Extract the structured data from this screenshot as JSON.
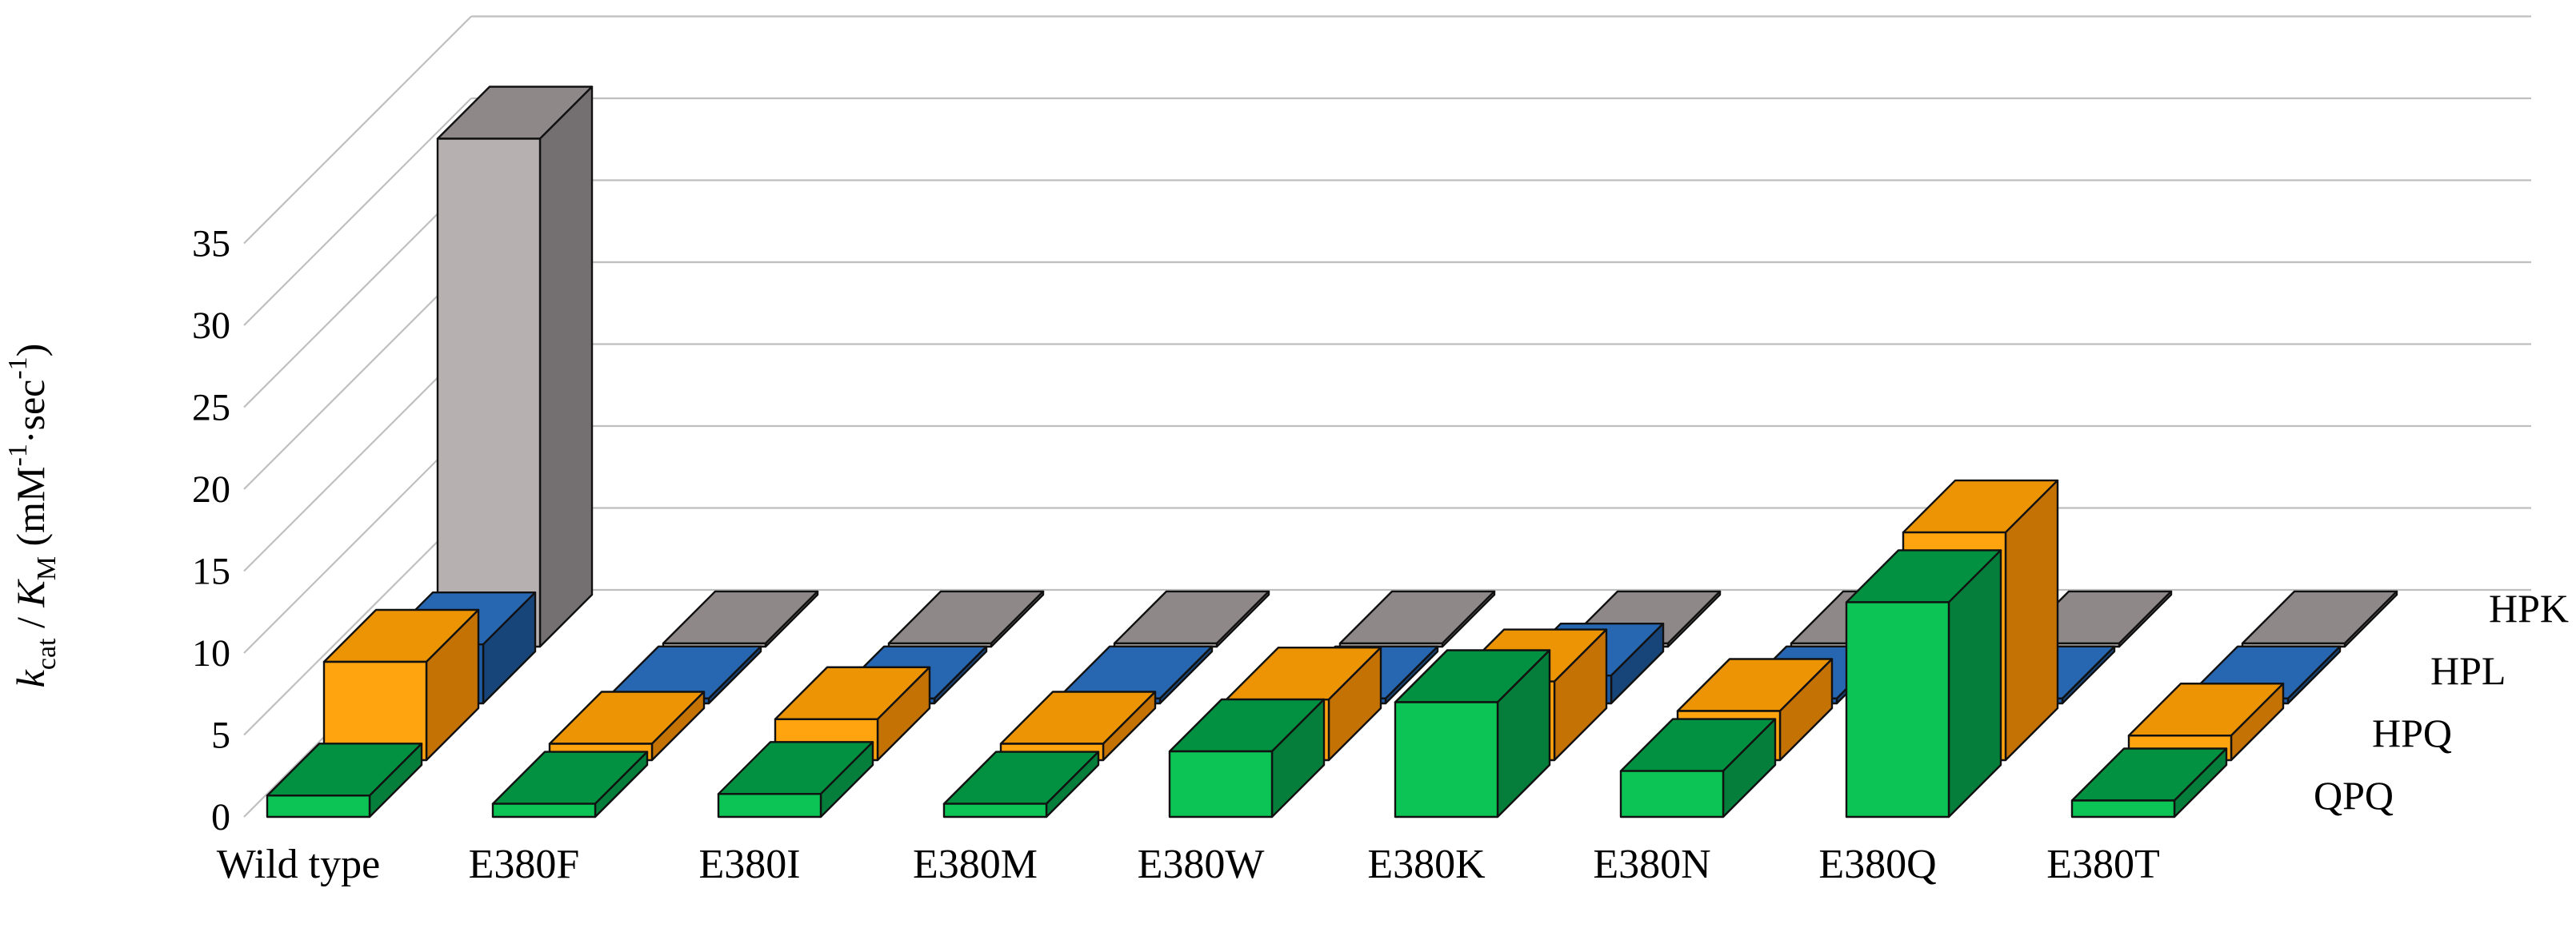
{
  "figure": {
    "kind": "3d-grouped-bar-chart",
    "background": "#ffffff"
  },
  "chart_data": {
    "type": "bar",
    "projection": "3d-depth",
    "title": "",
    "xlabel": "",
    "ylabel_plain": "kcat / KM (mM-1·sec-1)",
    "ylabel_parts": [
      {
        "text": "k",
        "italic": true
      },
      {
        "text": "cat",
        "script": "sub"
      },
      {
        "text": " / "
      },
      {
        "text": "K",
        "italic": true
      },
      {
        "text": "M",
        "script": "sub"
      },
      {
        "text": " (mM"
      },
      {
        "text": "-1",
        "script": "sup"
      },
      {
        "text": "·sec"
      },
      {
        "text": "-1",
        "script": "sup"
      },
      {
        "text": ")"
      }
    ],
    "categories": [
      "Wild type",
      "E380F",
      "E380I",
      "E380M",
      "E380W",
      "E380K",
      "E380N",
      "E380Q",
      "E380T"
    ],
    "series": [
      {
        "name": "HPK",
        "depth_row": 3,
        "color_front": "#B6B0B1",
        "color_top": "#8E8889",
        "color_side": "#747072",
        "values": [
          31,
          0.2,
          0.2,
          0.2,
          0.2,
          0.2,
          0.2,
          0.2,
          0.2
        ]
      },
      {
        "name": "HPL",
        "depth_row": 2,
        "color_front": "#1E5CA5",
        "color_top": "#2767B2",
        "color_side": "#174479",
        "values": [
          3.6,
          0.3,
          0.3,
          0.3,
          0.3,
          1.7,
          0.3,
          0.3,
          0.3
        ]
      },
      {
        "name": "HPQ",
        "depth_row": 1,
        "color_front": "#FFA40E",
        "color_top": "#ED9405",
        "color_side": "#C47204",
        "values": [
          6.0,
          1.0,
          2.5,
          1.0,
          3.7,
          4.8,
          3.0,
          13.9,
          1.5
        ]
      },
      {
        "name": "QPQ",
        "depth_row": 0,
        "color_front": "#0CC455",
        "color_top": "#019140",
        "color_side": "#047E3A",
        "values": [
          1.3,
          0.8,
          1.4,
          0.8,
          4.0,
          7.0,
          2.8,
          13.1,
          1.0
        ]
      }
    ],
    "y_ticks": [
      0,
      5,
      10,
      15,
      20,
      25,
      30,
      35
    ],
    "ylim": [
      0,
      40
    ],
    "grid": true,
    "grid_color": "#BFBFBF",
    "outline_color": "#111111",
    "text_color": "#000000",
    "legend_position": "right-depth-axis",
    "legend_labels_back_to_front": [
      "HPK",
      "HPL",
      "HPQ",
      "QPQ"
    ]
  }
}
